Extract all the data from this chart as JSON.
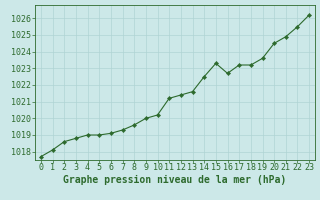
{
  "x": [
    0,
    1,
    2,
    3,
    4,
    5,
    6,
    7,
    8,
    9,
    10,
    11,
    12,
    13,
    14,
    15,
    16,
    17,
    18,
    19,
    20,
    21,
    22,
    23
  ],
  "y": [
    1017.7,
    1018.1,
    1018.6,
    1018.8,
    1019.0,
    1019.0,
    1019.1,
    1019.3,
    1019.6,
    1020.0,
    1020.2,
    1021.2,
    1021.4,
    1021.6,
    1022.5,
    1023.3,
    1022.7,
    1023.2,
    1023.2,
    1023.6,
    1024.5,
    1024.9,
    1025.5,
    1026.2
  ],
  "ylim": [
    1017.5,
    1026.8
  ],
  "yticks": [
    1018,
    1019,
    1020,
    1021,
    1022,
    1023,
    1024,
    1025,
    1026
  ],
  "xlim": [
    -0.5,
    23.5
  ],
  "xticks": [
    0,
    1,
    2,
    3,
    4,
    5,
    6,
    7,
    8,
    9,
    10,
    11,
    12,
    13,
    14,
    15,
    16,
    17,
    18,
    19,
    20,
    21,
    22,
    23
  ],
  "xlabel": "Graphe pression niveau de la mer (hPa)",
  "line_color": "#2d6a2d",
  "marker_color": "#2d6a2d",
  "bg_color": "#cce8e8",
  "grid_color": "#b0d4d4",
  "tick_color": "#2d6a2d",
  "xlabel_color": "#2d6a2d",
  "xlabel_fontsize": 7.0,
  "tick_fontsize": 6.0
}
